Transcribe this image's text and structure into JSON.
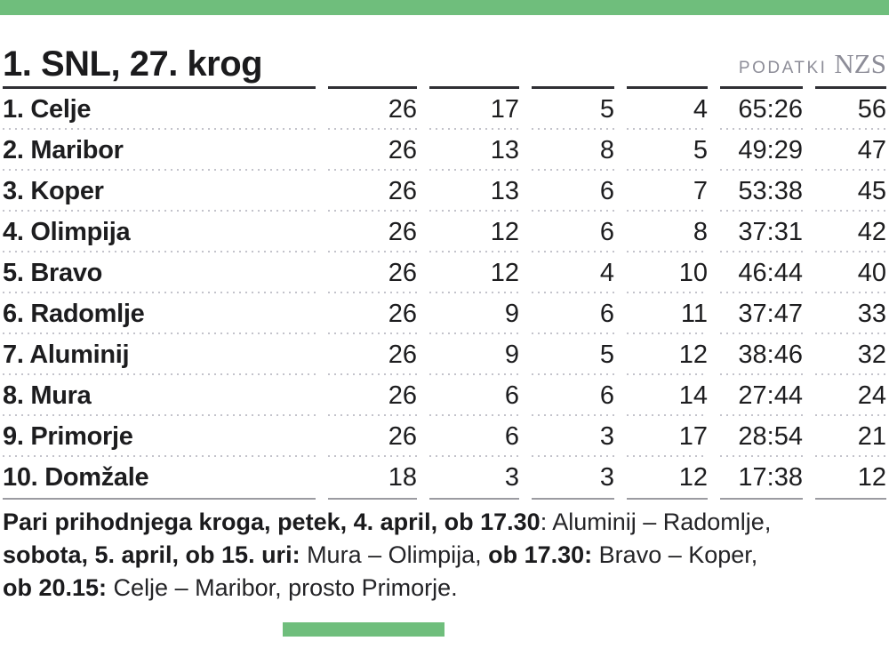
{
  "theme": {
    "accent_green": "#6fbe7c",
    "muted_gray": "#8d8d98",
    "rule_dark": "#2f2f34",
    "rule_light": "#9b9ba1",
    "dotted_gray": "#c3c3cb",
    "text_dark": "#1b1b1d"
  },
  "header": {
    "title": "1. SNL, 27. krog",
    "source_label": "PODATKI",
    "source_brand": "NZS"
  },
  "table": {
    "rows": [
      {
        "rank": "1.",
        "name": "Celje",
        "played": "26",
        "wins": "17",
        "draws": "5",
        "losses": "4",
        "goals": "65:26",
        "points": "56"
      },
      {
        "rank": "2.",
        "name": "Maribor",
        "played": "26",
        "wins": "13",
        "draws": "8",
        "losses": "5",
        "goals": "49:29",
        "points": "47"
      },
      {
        "rank": "3.",
        "name": "Koper",
        "played": "26",
        "wins": "13",
        "draws": "6",
        "losses": "7",
        "goals": "53:38",
        "points": "45"
      },
      {
        "rank": "4.",
        "name": "Olimpija",
        "played": "26",
        "wins": "12",
        "draws": "6",
        "losses": "8",
        "goals": "37:31",
        "points": "42"
      },
      {
        "rank": "5.",
        "name": "Bravo",
        "played": "26",
        "wins": "12",
        "draws": "4",
        "losses": "10",
        "goals": "46:44",
        "points": "40"
      },
      {
        "rank": "6.",
        "name": "Radomlje",
        "played": "26",
        "wins": "9",
        "draws": "6",
        "losses": "11",
        "goals": "37:47",
        "points": "33"
      },
      {
        "rank": "7.",
        "name": "Aluminij",
        "played": "26",
        "wins": "9",
        "draws": "5",
        "losses": "12",
        "goals": "38:46",
        "points": "32"
      },
      {
        "rank": "8.",
        "name": "Mura",
        "played": "26",
        "wins": "6",
        "draws": "6",
        "losses": "14",
        "goals": "27:44",
        "points": "24"
      },
      {
        "rank": "9.",
        "name": "Primorje",
        "played": "26",
        "wins": "6",
        "draws": "3",
        "losses": "17",
        "goals": "28:54",
        "points": "21"
      },
      {
        "rank": "10.",
        "name": "Domžale",
        "played": "18",
        "wins": "3",
        "draws": "3",
        "losses": "12",
        "goals": "17:38",
        "points": "12"
      }
    ]
  },
  "footer": {
    "lines": [
      {
        "segments": [
          {
            "text": "Pari prihodnjega kroga, petek, 4. april, ob 17.30",
            "bold": true
          },
          {
            "text": ": Aluminij – Radomlje,",
            "bold": false
          }
        ]
      },
      {
        "segments": [
          {
            "text": "sobota, 5. april, ob 15. uri:",
            "bold": true
          },
          {
            "text": " Mura – Olimpija, ",
            "bold": false
          },
          {
            "text": "ob 17.30:",
            "bold": true
          },
          {
            "text": " Bravo – Koper,",
            "bold": false
          }
        ]
      },
      {
        "segments": [
          {
            "text": "ob 20.15:",
            "bold": true
          },
          {
            "text": " Celje – Maribor, prosto Primorje.",
            "bold": false
          }
        ]
      }
    ]
  }
}
